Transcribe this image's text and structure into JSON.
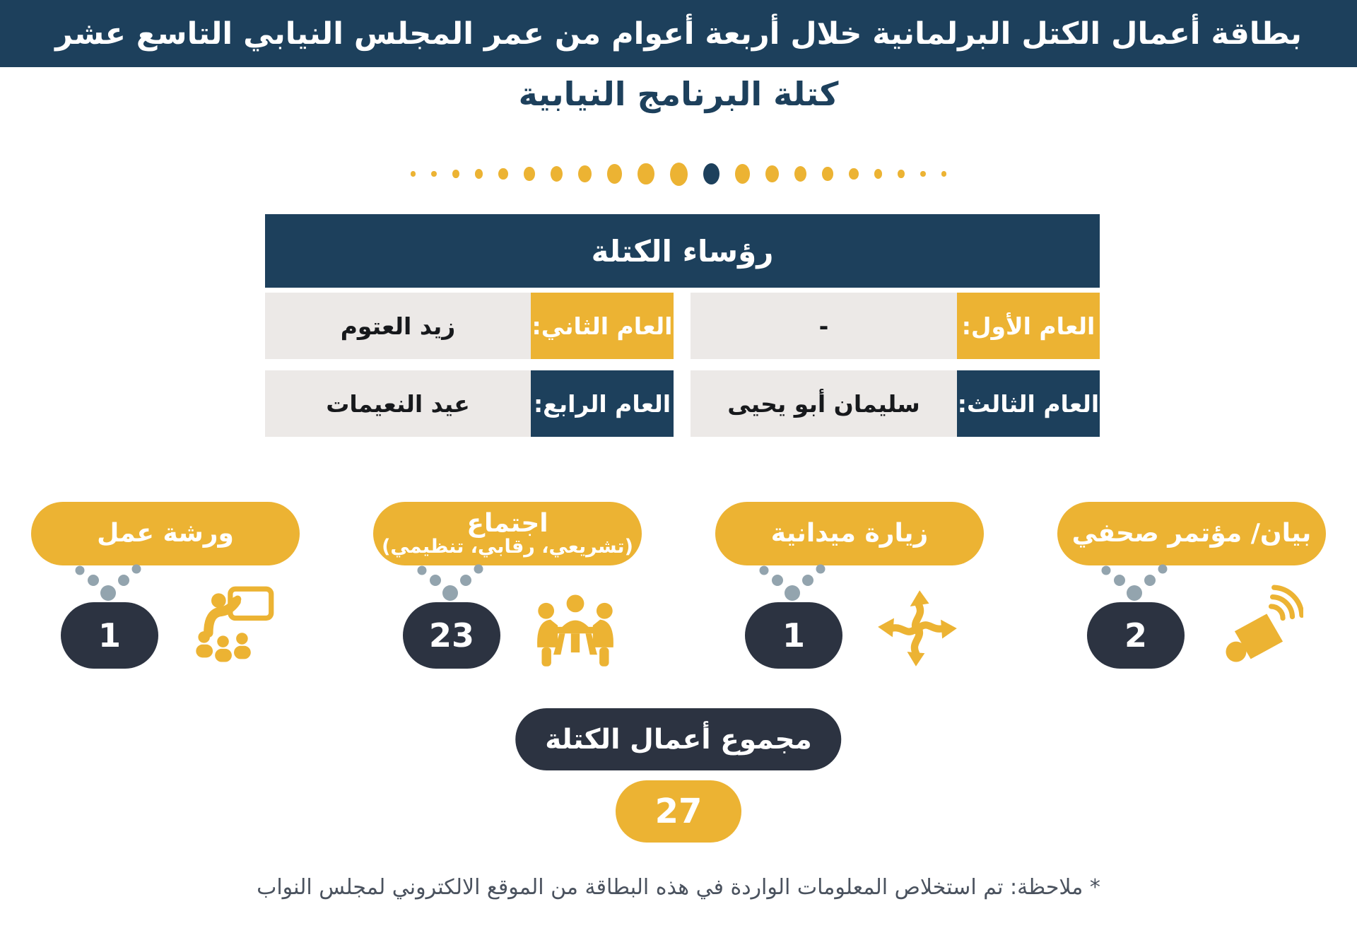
{
  "page": {
    "title": "بطاقة أعمال الكتل البرلمانية خلال أربعة أعوام من عمر المجلس النيابي التاسع عشر",
    "subtitle": "كتلة البرنامج النيابية",
    "footnote": "* ملاحظة: تم استخلاص المعلومات الواردة في هذه البطاقة من الموقع الالكتروني لمجلس النواب"
  },
  "leaders_table": {
    "header": "رؤساء الكتلة",
    "rows": [
      {
        "cells": [
          {
            "label": "العام الأول:",
            "value": "-"
          },
          {
            "label": "العام الثاني:",
            "value": "زيد العتوم"
          }
        ]
      },
      {
        "cells": [
          {
            "label": "العام الثالث:",
            "value": "سليمان أبو يحيى"
          },
          {
            "label": "العام الرابع:",
            "value": "عيد النعيمات"
          }
        ]
      }
    ]
  },
  "stats": [
    {
      "label": "بيان/ مؤتمر صحفي",
      "sublabel": "",
      "value": "2",
      "icon": "megaphone-icon"
    },
    {
      "label": "زيارة ميدانية",
      "sublabel": "",
      "value": "1",
      "icon": "crossed-arrows-icon"
    },
    {
      "label": "اجتماع",
      "sublabel": "(تشريعي، رقابي، تنظيمي)",
      "value": "23",
      "icon": "meeting-people-icon"
    },
    {
      "label": "ورشة عمل",
      "sublabel": "",
      "value": "1",
      "icon": "workshop-presenter-icon"
    }
  ],
  "total": {
    "label": "مجموع أعمال الكتلة",
    "value": "27"
  },
  "separator": {
    "count": 21,
    "dark_index": 11
  },
  "colors": {
    "navy": "#1d405c",
    "slate": "#2c3341",
    "gold": "#ecb333",
    "light_gray": "#ece9e7",
    "dot_gray": "#93a4ae"
  },
  "chart_data": {
    "type": "table",
    "title": "بطاقة أعمال الكتل البرلمانية خلال أربعة أعوام من عمر المجلس النيابي التاسع عشر",
    "subtitle": "كتلة البرنامج النيابية",
    "categories": [
      "بيان/ مؤتمر صحفي",
      "زيارة ميدانية",
      "اجتماع (تشريعي، رقابي، تنظيمي)",
      "ورشة عمل"
    ],
    "values": [
      2,
      1,
      23,
      1
    ],
    "total_label": "مجموع أعمال الكتلة",
    "total": 27,
    "leaders": [
      {
        "year": "العام الأول:",
        "name": "-"
      },
      {
        "year": "العام الثاني:",
        "name": "زيد العتوم"
      },
      {
        "year": "العام الثالث:",
        "name": "سليمان أبو يحيى"
      },
      {
        "year": "العام الرابع:",
        "name": "عيد النعيمات"
      }
    ]
  }
}
